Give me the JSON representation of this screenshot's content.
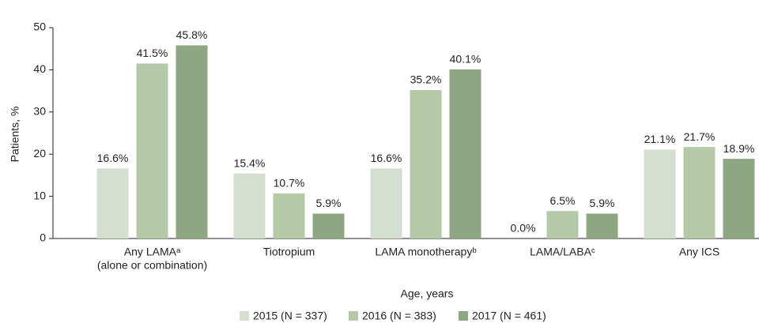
{
  "chart_data": {
    "type": "bar",
    "categories": [
      [
        "Any LAMAᵃ",
        "(alone or combination)"
      ],
      [
        "Tiotropium"
      ],
      [
        "LAMA monotherapyᵇ"
      ],
      [
        "LAMA/LABAᶜ"
      ],
      [
        "Any ICS"
      ]
    ],
    "series": [
      {
        "name": "2015 (N = 337)",
        "color": "#d5dfcf",
        "values": [
          16.6,
          15.4,
          16.6,
          0.0,
          21.1
        ],
        "value_labels": [
          "16.6%",
          "15.4%",
          "16.6%",
          "0.0%",
          "21.1%"
        ]
      },
      {
        "name": "2016 (N = 383)",
        "color": "#b5c8a8",
        "values": [
          41.5,
          10.7,
          35.2,
          6.5,
          21.7
        ],
        "value_labels": [
          "41.5%",
          "10.7%",
          "35.2%",
          "6.5%",
          "21.7%"
        ]
      },
      {
        "name": "2017 (N = 461)",
        "color": "#8fa683",
        "values": [
          45.8,
          5.9,
          40.1,
          5.9,
          18.9
        ],
        "value_labels": [
          "45.8%",
          "5.9%",
          "40.1%",
          "5.9%",
          "18.9%"
        ]
      }
    ],
    "xlabel": "Age, years",
    "ylabel": "Patients, %",
    "ylim": [
      0,
      50
    ],
    "yticks": [
      0,
      10,
      20,
      30,
      40,
      50
    ],
    "grid": false,
    "legend": "bottom"
  }
}
